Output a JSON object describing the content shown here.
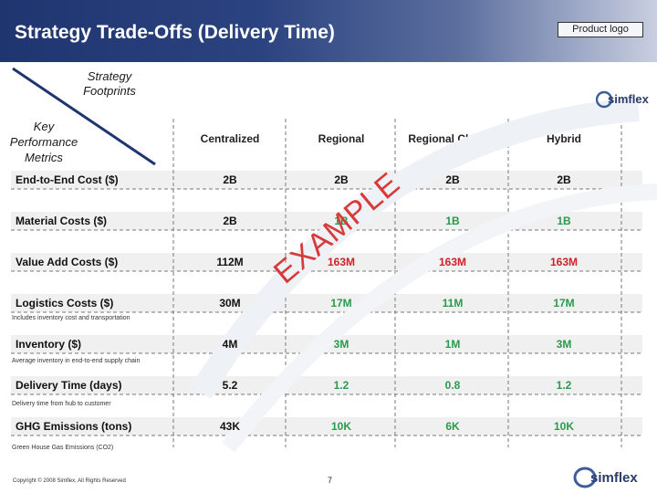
{
  "header": {
    "title": "Strategy Trade-Offs (Delivery Time)",
    "product_logo": "Product logo"
  },
  "corner": {
    "footprints": "Strategy Footprints",
    "kpm": "Key Performance Metrics"
  },
  "columns": [
    "Centralized",
    "Regional",
    "Regional Closest",
    "Hybrid"
  ],
  "rows": [
    {
      "label": "End-to-End Cost ($)",
      "values": [
        "2B",
        "2B",
        "2B",
        "2B"
      ],
      "colors": [
        "dark",
        "dark",
        "dark",
        "dark"
      ],
      "note": ""
    },
    {
      "label": "Material Costs ($)",
      "values": [
        "2B",
        "1B",
        "1B",
        "1B"
      ],
      "colors": [
        "dark",
        "green",
        "green",
        "green"
      ],
      "note": ""
    },
    {
      "label": "Value Add Costs ($)",
      "values": [
        "112M",
        "163M",
        "163M",
        "163M"
      ],
      "colors": [
        "dark",
        "red",
        "red",
        "red"
      ],
      "note": ""
    },
    {
      "label": "Logistics Costs ($)",
      "values": [
        "30M",
        "17M",
        "11M",
        "17M"
      ],
      "colors": [
        "dark",
        "green",
        "green",
        "green"
      ],
      "note": "Includes inventory cost and transportation"
    },
    {
      "label": "Inventory ($)",
      "values": [
        "4M",
        "3M",
        "1M",
        "3M"
      ],
      "colors": [
        "dark",
        "green",
        "green",
        "green"
      ],
      "note": "Average inventory in end-to-end supply chain"
    },
    {
      "label": "Delivery Time (days)",
      "values": [
        "5.2",
        "1.2",
        "0.8",
        "1.2"
      ],
      "colors": [
        "dark",
        "green",
        "green",
        "green"
      ],
      "note": "Delivery time from hub to customer"
    },
    {
      "label": "GHG Emissions (tons)",
      "values": [
        "43K",
        "10K",
        "6K",
        "10K"
      ],
      "colors": [
        "dark",
        "green",
        "green",
        "green"
      ],
      "note": "Green House Gas Emissions (CO2)"
    }
  ],
  "stamp": "EXAMPLE",
  "brand": "simflex",
  "footer": {
    "copyright": "Copyright © 2008 Simflex, All Rights Reserved",
    "page": "7"
  },
  "palette": {
    "dark": "#111111",
    "green": "#2a9a4a",
    "red": "#d0202a",
    "header": "#1f3570"
  }
}
